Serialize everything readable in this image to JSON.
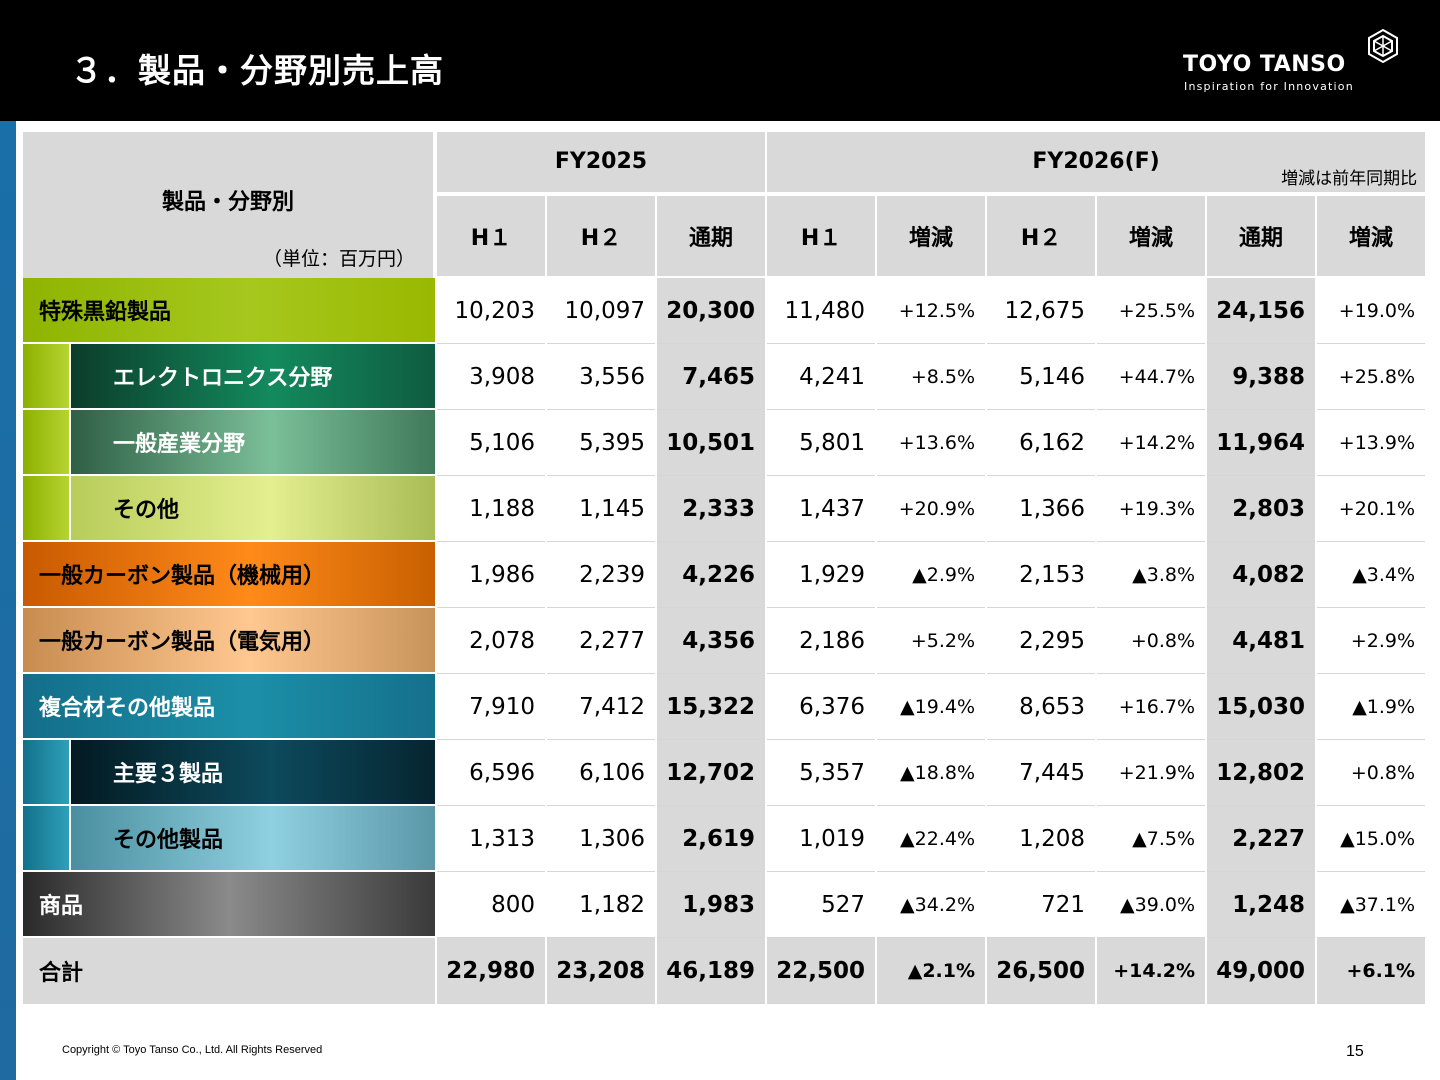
{
  "title": "３．製品・分野別売上高",
  "logo": {
    "name": "TOYO TANSO",
    "tagline": "Inspiration for Innovation"
  },
  "header": {
    "category_label": "製品・分野別",
    "unit": "（単位：百万円）",
    "fy2025": "FY2025",
    "fy2026": "FY2026(F)",
    "note": "増減は前年同期比",
    "cols": [
      "H１",
      "H２",
      "通期",
      "H１",
      "増減",
      "H２",
      "増減",
      "通期",
      "増減"
    ]
  },
  "rows": [
    {
      "label": "特殊黒鉛製品",
      "values": [
        "10,203",
        "10,097",
        "20,300",
        "11,480",
        "+12.5%",
        "12,675",
        "+25.5%",
        "24,156",
        "+19.0%"
      ]
    },
    {
      "label": "エレクトロニクス分野",
      "values": [
        "3,908",
        "3,556",
        "7,465",
        "4,241",
        "+8.5%",
        "5,146",
        "+44.7%",
        "9,388",
        "+25.8%"
      ]
    },
    {
      "label": "一般産業分野",
      "values": [
        "5,106",
        "5,395",
        "10,501",
        "5,801",
        "+13.6%",
        "6,162",
        "+14.2%",
        "11,964",
        "+13.9%"
      ]
    },
    {
      "label": "その他",
      "values": [
        "1,188",
        "1,145",
        "2,333",
        "1,437",
        "+20.9%",
        "1,366",
        "+19.3%",
        "2,803",
        "+20.1%"
      ]
    },
    {
      "label": "一般カーボン製品（機械用）",
      "values": [
        "1,986",
        "2,239",
        "4,226",
        "1,929",
        "▲2.9%",
        "2,153",
        "▲3.8%",
        "4,082",
        "▲3.4%"
      ]
    },
    {
      "label": "一般カーボン製品（電気用）",
      "values": [
        "2,078",
        "2,277",
        "4,356",
        "2,186",
        "+5.2%",
        "2,295",
        "+0.8%",
        "4,481",
        "+2.9%"
      ]
    },
    {
      "label": "複合材その他製品",
      "values": [
        "7,910",
        "7,412",
        "15,322",
        "6,376",
        "▲19.4%",
        "8,653",
        "+16.7%",
        "15,030",
        "▲1.9%"
      ]
    },
    {
      "label": "主要３製品",
      "values": [
        "6,596",
        "6,106",
        "12,702",
        "5,357",
        "▲18.8%",
        "7,445",
        "+21.9%",
        "12,802",
        "+0.8%"
      ]
    },
    {
      "label": "その他製品",
      "values": [
        "1,313",
        "1,306",
        "2,619",
        "1,019",
        "▲22.4%",
        "1,208",
        "▲7.5%",
        "2,227",
        "▲15.0%"
      ]
    },
    {
      "label": "商品",
      "values": [
        "800",
        "1,182",
        "1,983",
        "527",
        "▲34.2%",
        "721",
        "▲39.0%",
        "1,248",
        "▲37.1%"
      ]
    },
    {
      "label": "合計",
      "values": [
        "22,980",
        "23,208",
        "46,189",
        "22,500",
        "▲2.1%",
        "26,500",
        "+14.2%",
        "49,000",
        "+6.1%"
      ]
    }
  ],
  "footer": "Copyright © Toyo Tanso Co., Ltd. All Rights Reserved",
  "page_number": "15",
  "colors": {
    "graphite": "#99b800",
    "carbon_mech": "#e07a10",
    "carbon_elec": "#d9a36a",
    "composite": "#1a86a0",
    "goods": "#4a4a4a"
  }
}
